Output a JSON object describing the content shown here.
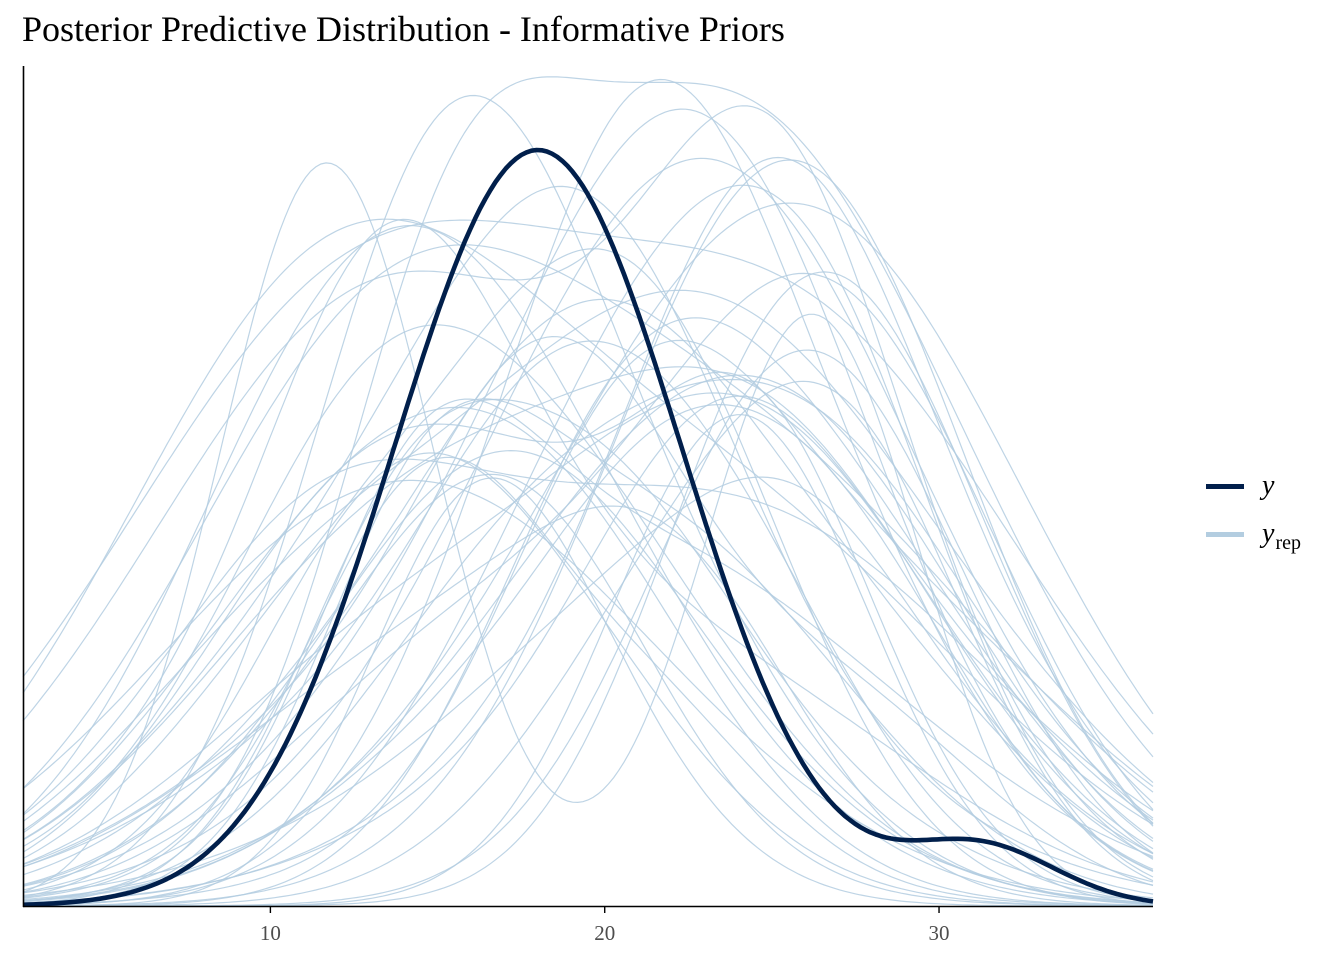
{
  "title": "Posterior Predictive Distribution - Informative Priors",
  "legend": {
    "y_label": "y",
    "yrep_label": "y",
    "yrep_subscript": "rep",
    "y_color": "#011f4b",
    "yrep_color": "#b3cde0"
  },
  "chart_data": {
    "type": "line",
    "title": "Posterior Predictive Distribution - Informative Priors",
    "xlabel": "",
    "ylabel": "",
    "xlim": [
      2.6,
      36.4
    ],
    "x_ticks": [
      10,
      20,
      30
    ],
    "y_axis_labels": "none",
    "grid": false,
    "legend_position": "right",
    "series": [
      {
        "name": "y",
        "color": "#011f4b",
        "x": [
          2.6,
          4,
          6,
          8,
          10,
          12,
          13.5,
          15,
          16.5,
          18,
          19.5,
          21,
          22.5,
          24,
          26,
          27.5,
          29,
          30.5,
          32,
          33.5,
          35,
          36.4
        ],
        "density": [
          0.0,
          0.003,
          0.016,
          0.056,
          0.151,
          0.317,
          0.509,
          0.699,
          0.805,
          0.824,
          0.787,
          0.683,
          0.509,
          0.32,
          0.124,
          0.03,
          0.001,
          0.0,
          0.0,
          0.0,
          0.0,
          0.0
        ],
        "components": [
          {
            "w": 0.9,
            "mu": 18.0,
            "sigma": 4.3
          },
          {
            "w": 0.07,
            "mu": 31.2,
            "sigma": 2.3
          }
        ]
      },
      {
        "name": "y_rep",
        "color": "#b3cde0",
        "draw_count": 50,
        "peak_x_range": [
          14,
          27
        ],
        "peak_density_range": [
          0.45,
          1.0
        ]
      }
    ]
  }
}
